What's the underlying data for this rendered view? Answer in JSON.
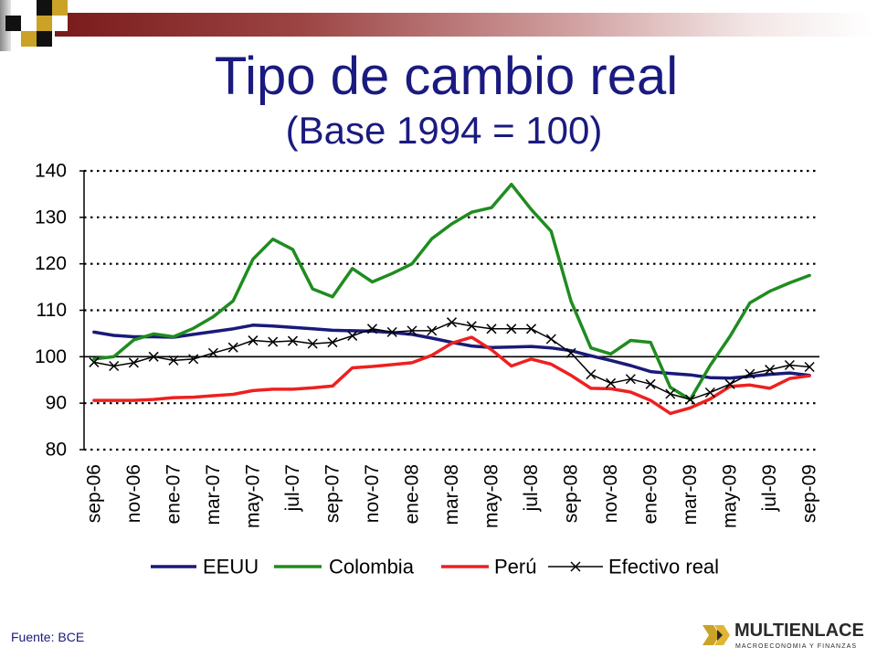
{
  "chart_data": {
    "type": "line",
    "title": "Tipo de cambio real",
    "subtitle": "(Base 1994 = 100)",
    "x_tick_labels": [
      "sep-06",
      "nov-06",
      "ene-07",
      "mar-07",
      "may-07",
      "jul-07",
      "sep-07",
      "nov-07",
      "ene-08",
      "mar-08",
      "may-08",
      "jul-08",
      "sep-08",
      "nov-08",
      "ene-09",
      "mar-09",
      "may-09",
      "jul-09",
      "sep-09"
    ],
    "ylim": [
      80,
      140
    ],
    "yticks": [
      80,
      90,
      100,
      110,
      120,
      130,
      140
    ],
    "xaxis_crosses_at": 100,
    "grid": "dotted",
    "legend": "bottom",
    "series": [
      {
        "name": "EEUU",
        "color": "#1a1a7a",
        "marker": "none",
        "values": [
          105.3,
          104.6,
          104.3,
          104.3,
          104.2,
          104.8,
          105.4,
          106.0,
          106.8,
          106.6,
          106.3,
          106.0,
          105.7,
          105.6,
          105.5,
          105.2,
          104.8,
          104.0,
          103.1,
          102.3,
          102.0,
          102.1,
          102.2,
          101.9,
          101.3,
          100.2,
          99.2,
          98.1,
          96.8,
          96.4,
          96.1,
          95.5,
          95.4,
          95.8,
          96.2,
          96.5,
          96.0
        ]
      },
      {
        "name": "Colombia",
        "color": "#1f8c1f",
        "marker": "none",
        "values": [
          99.5,
          100.0,
          103.6,
          104.9,
          104.3,
          106.1,
          108.6,
          112.0,
          121.0,
          125.3,
          123.1,
          114.6,
          112.9,
          119.0,
          116.1,
          117.9,
          120.0,
          125.4,
          128.6,
          131.1,
          132.1,
          137.1,
          131.7,
          127.0,
          112.0,
          101.9,
          100.6,
          103.5,
          103.1,
          93.4,
          90.8,
          98.1,
          104.4,
          111.6,
          114.1,
          115.9,
          117.5
        ]
      },
      {
        "name": "Perú",
        "color": "#ee2020",
        "marker": "none",
        "values": [
          90.6,
          90.6,
          90.6,
          90.8,
          91.2,
          91.3,
          91.6,
          91.9,
          92.7,
          93.0,
          93.0,
          93.3,
          93.7,
          97.6,
          97.9,
          98.3,
          98.7,
          100.3,
          102.9,
          104.2,
          101.5,
          98.0,
          99.5,
          98.4,
          96.0,
          93.2,
          93.1,
          92.4,
          90.6,
          87.8,
          89.0,
          90.9,
          93.6,
          93.9,
          93.2,
          95.3,
          95.9
        ]
      },
      {
        "name": "Efectivo real",
        "color": "#000000",
        "marker": "x",
        "values": [
          98.8,
          98.0,
          98.7,
          100.0,
          99.2,
          99.5,
          100.8,
          102.0,
          103.5,
          103.2,
          103.4,
          102.8,
          103.1,
          104.5,
          106.0,
          105.3,
          105.6,
          105.6,
          107.4,
          106.6,
          106.0,
          106.0,
          106.0,
          103.8,
          100.8,
          96.2,
          94.3,
          95.2,
          94.1,
          92.0,
          90.8,
          92.3,
          94.1,
          96.3,
          97.2,
          98.2,
          97.8
        ]
      }
    ]
  },
  "footer": {
    "source": "Fuente: BCE"
  },
  "logo": {
    "name": "MULTIENLACE",
    "tagline": "MACROECONOMIA Y FINANZAS",
    "icon": "multienlace-logo-icon"
  },
  "theme": {
    "title_color": "#1a1a80",
    "banner_color": "#7a1a1a",
    "accent_gold": "#c9a227"
  }
}
